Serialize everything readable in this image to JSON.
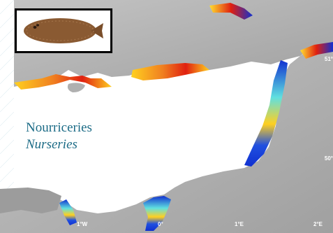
{
  "legend": {
    "title_fr": "Nourriceries",
    "title_en": "Nurseries"
  },
  "axes": {
    "longitude_ticks": [
      "1°W",
      "0°",
      "1°E",
      "2°E"
    ],
    "latitude_ticks": [
      "51°",
      "50°"
    ]
  },
  "inset": {
    "species_icon": "flatfish-sole-icon"
  },
  "colors": {
    "sea": "#ffffff",
    "land": "#a8a8a8",
    "legend_text": "#1b6b86",
    "inset_border": "#000000",
    "nursery_low": "#1030d0",
    "nursery_mid": "#60e0e0",
    "nursery_high": "#ffd020",
    "nursery_max": "#e02010"
  }
}
